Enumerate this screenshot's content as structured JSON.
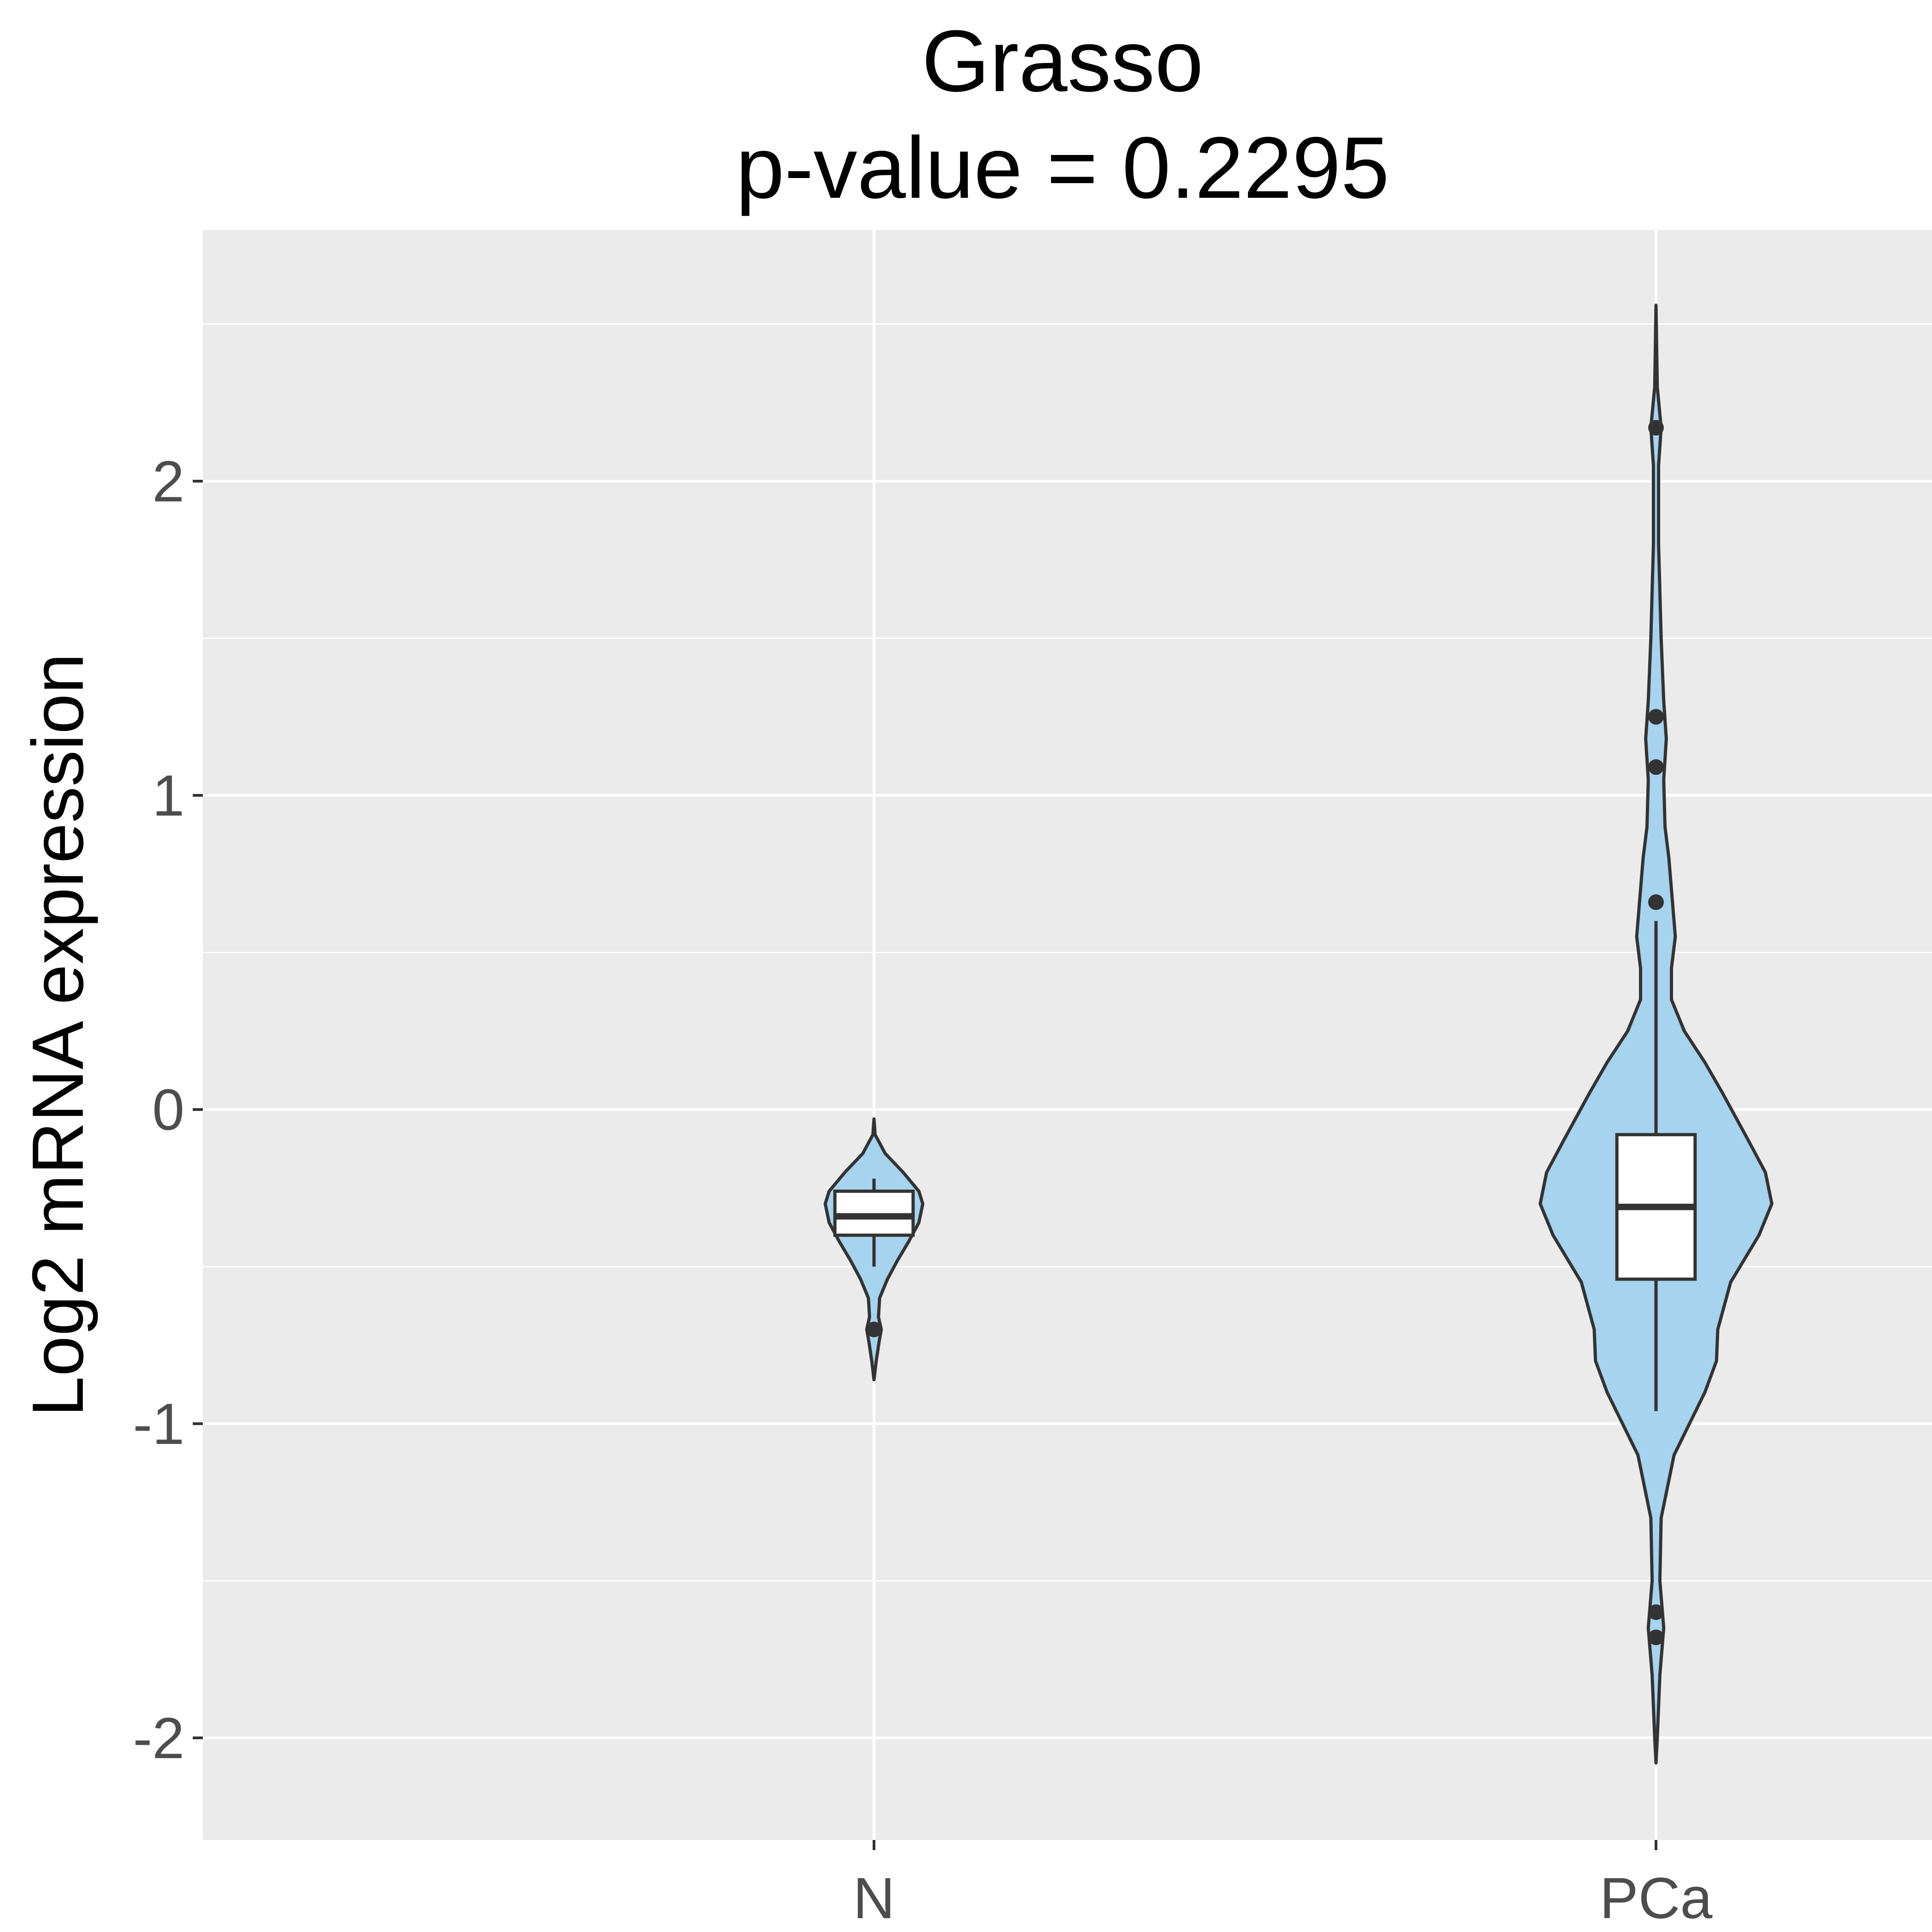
{
  "chart_data": {
    "type": "violin",
    "title": "Grasso",
    "subtitle": "p-value = 0.2295",
    "xlabel": "",
    "ylabel": "Log2 mRNA expression",
    "categories": [
      "N",
      "PCa"
    ],
    "y_ticks": [
      "2",
      "1",
      "0",
      "-1",
      "-2"
    ],
    "y_tick_values": [
      2,
      1,
      0,
      -1,
      -2
    ],
    "ylim": [
      -2.33,
      2.78
    ],
    "grid": true,
    "colors": {
      "panel": "#ebebeb",
      "grid": "#ffffff",
      "violin_fill": "#a6d3ed",
      "stroke": "#333333",
      "box_fill": "#ffffff"
    },
    "groups": [
      {
        "name": "N",
        "box": {
          "q1": -0.4,
          "median": -0.34,
          "q3": -0.26,
          "whisker_low": -0.5,
          "whisker_high": -0.22
        },
        "outliers": [
          -0.7
        ],
        "violin": {
          "y": [
            -0.03,
            -0.08,
            -0.14,
            -0.2,
            -0.26,
            -0.3,
            -0.36,
            -0.42,
            -0.48,
            -0.54,
            -0.6,
            -0.66,
            -0.7,
            -0.74,
            -0.8,
            -0.86
          ],
          "density": [
            0.0,
            0.02,
            0.2,
            0.52,
            0.8,
            0.87,
            0.8,
            0.62,
            0.42,
            0.24,
            0.1,
            0.08,
            0.13,
            0.09,
            0.04,
            0.0
          ]
        }
      },
      {
        "name": "PCa",
        "box": {
          "q1": -0.54,
          "median": -0.31,
          "q3": -0.08,
          "whisker_low": -0.96,
          "whisker_high": 0.6
        },
        "outliers": [
          2.17,
          1.25,
          1.09,
          0.66,
          -1.6,
          -1.68
        ],
        "violin": {
          "y": [
            2.56,
            2.3,
            2.17,
            2.05,
            1.8,
            1.5,
            1.3,
            1.18,
            1.05,
            0.9,
            0.8,
            0.65,
            0.55,
            0.45,
            0.35,
            0.25,
            0.15,
            0.05,
            -0.1,
            -0.2,
            -0.3,
            -0.4,
            -0.55,
            -0.7,
            -0.8,
            -0.9,
            -1.1,
            -1.3,
            -1.5,
            -1.65,
            -1.8,
            -2.0,
            -2.08
          ],
          "density": [
            0.0,
            0.01,
            0.04,
            0.02,
            0.02,
            0.04,
            0.06,
            0.08,
            0.06,
            0.07,
            0.1,
            0.13,
            0.15,
            0.12,
            0.12,
            0.22,
            0.38,
            0.52,
            0.72,
            0.85,
            0.9,
            0.8,
            0.58,
            0.48,
            0.47,
            0.38,
            0.14,
            0.04,
            0.03,
            0.06,
            0.03,
            0.01,
            0.0
          ]
        }
      }
    ]
  }
}
